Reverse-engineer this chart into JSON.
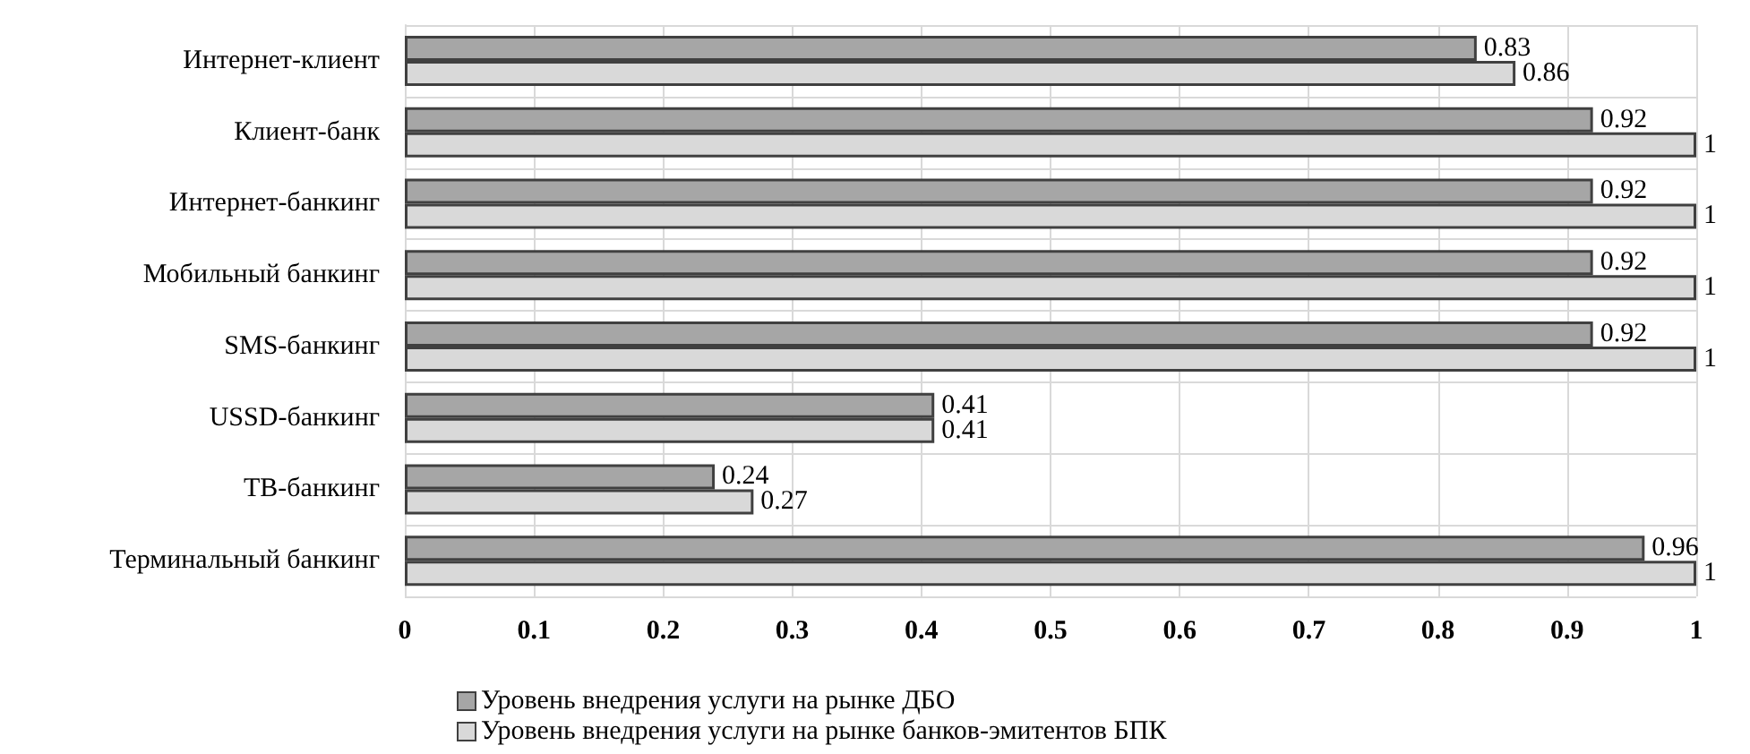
{
  "chart_data": {
    "type": "bar",
    "orientation": "horizontal",
    "categories": [
      "Интернет-клиент",
      "Клиент-банк",
      "Интернет-банкинг",
      "Мобильный банкинг",
      "SMS-банкинг",
      "USSD-банкинг",
      "ТВ-банкинг",
      "Терминальный банкинг"
    ],
    "series": [
      {
        "name": "Уровень внедрения услуги на рынке ДБО",
        "color": "#a6a6a6",
        "values": [
          0.83,
          0.92,
          0.92,
          0.92,
          0.92,
          0.41,
          0.24,
          0.96
        ]
      },
      {
        "name": "Уровень внедрения услуги на рынке банков-эмитентов БПК",
        "color": "#d9d9d9",
        "values": [
          0.86,
          1,
          1,
          1,
          1,
          0.41,
          0.27,
          1
        ]
      }
    ],
    "xlim": [
      0,
      1
    ],
    "xticks": [
      0,
      0.1,
      0.2,
      0.3,
      0.4,
      0.5,
      0.6,
      0.7,
      0.8,
      0.9,
      1
    ],
    "data_labels": true,
    "grid": true,
    "legend": "bottom left"
  }
}
